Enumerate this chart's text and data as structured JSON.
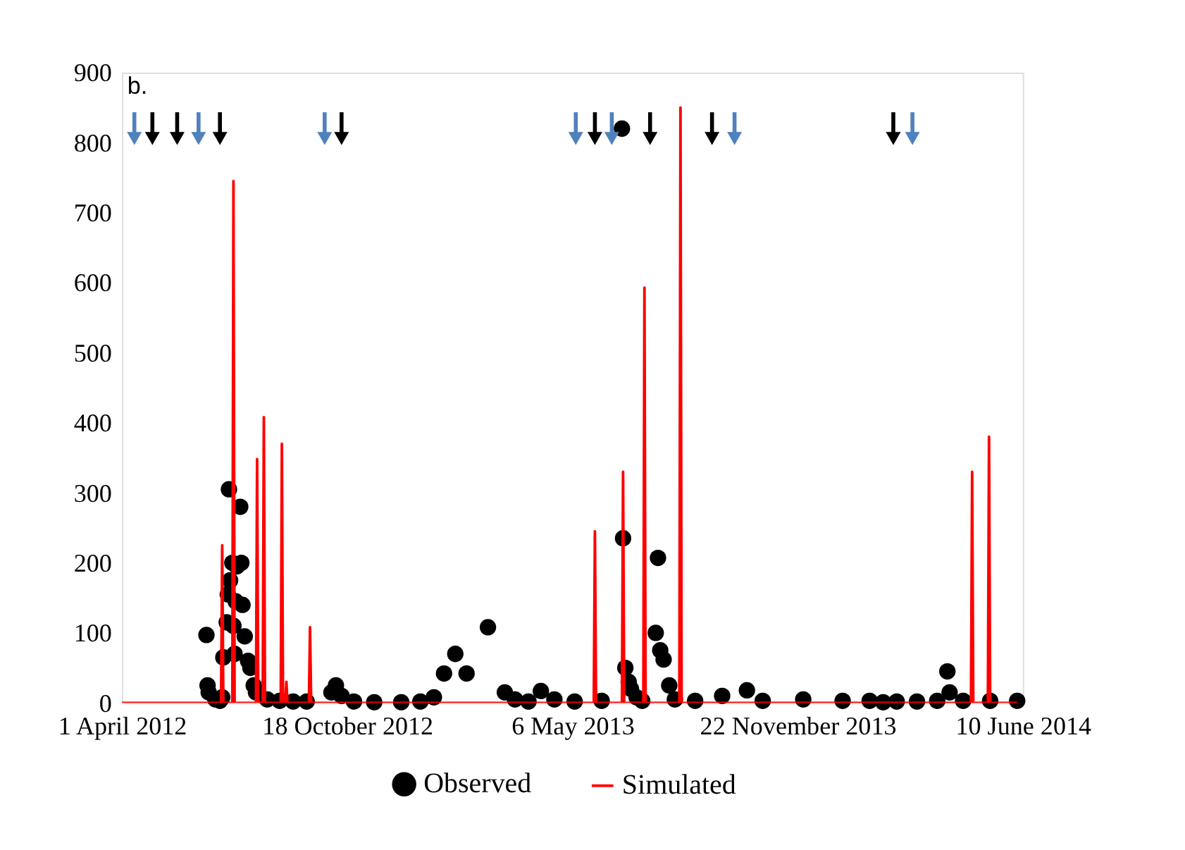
{
  "chart_data": {
    "type": "scatter",
    "annotations": [
      "b."
    ],
    "xlim": [
      "2012-04-01",
      "2014-06-10"
    ],
    "xticks": [
      {
        "value": "2012-04-01",
        "label": "1 April 2012"
      },
      {
        "value": "2012-10-18",
        "label": "18 October 2012"
      },
      {
        "value": "2013-05-06",
        "label": "6 May 2013"
      },
      {
        "value": "2013-11-22",
        "label": "22 November 2013"
      },
      {
        "value": "2014-06-10",
        "label": "10 June 2014"
      }
    ],
    "ylim": [
      0,
      900
    ],
    "yticks": [
      0,
      100,
      200,
      300,
      400,
      500,
      600,
      700,
      800,
      900
    ],
    "grid": false,
    "legend": "bottom",
    "series": [
      {
        "name": "Observed",
        "type": "scatter",
        "marker": "circle",
        "color": "#000000",
        "x": [
          "2012-06-15",
          "2012-06-16",
          "2012-06-17",
          "2012-06-23",
          "2012-06-27",
          "2012-06-29",
          "2012-06-30",
          "2012-07-03",
          "2012-07-04",
          "2012-07-05",
          "2012-07-06",
          "2012-07-08",
          "2012-07-09",
          "2012-07-10",
          "2012-07-11",
          "2012-07-12",
          "2012-07-15",
          "2012-07-16",
          "2012-07-17",
          "2012-07-19",
          "2012-07-22",
          "2012-07-24",
          "2012-07-27",
          "2012-07-29",
          "2012-08-08",
          "2012-08-19",
          "2012-08-31",
          "2012-09-12",
          "2012-10-04",
          "2012-10-08",
          "2012-10-13",
          "2012-10-24",
          "2012-11-11",
          "2012-12-05",
          "2012-12-22",
          "2013-01-03",
          "2013-01-12",
          "2013-01-22",
          "2013-02-01",
          "2013-02-20",
          "2013-03-07",
          "2013-03-16",
          "2013-03-28",
          "2013-04-08",
          "2013-04-20",
          "2013-05-08",
          "2013-06-01",
          "2013-06-19",
          "2013-06-20",
          "2013-06-22",
          "2013-06-25",
          "2013-06-27",
          "2013-07-02",
          "2013-07-07",
          "2013-07-19",
          "2013-07-21",
          "2013-07-23",
          "2013-07-26",
          "2013-07-31",
          "2013-08-05",
          "2013-08-23",
          "2013-09-16",
          "2013-10-08",
          "2013-10-22",
          "2013-11-27",
          "2014-01-01",
          "2014-01-25",
          "2014-02-06",
          "2014-02-18",
          "2014-03-08",
          "2014-03-26",
          "2014-04-04",
          "2014-04-06",
          "2014-04-18",
          "2014-05-12",
          "2014-06-05"
        ],
        "values": [
          97,
          25,
          15,
          5,
          3,
          8,
          65,
          115,
          155,
          305,
          175,
          200,
          110,
          70,
          145,
          195,
          280,
          200,
          140,
          95,
          60,
          50,
          25,
          15,
          5,
          3,
          2,
          2,
          15,
          25,
          10,
          2,
          1,
          1,
          2,
          8,
          42,
          70,
          42,
          108,
          15,
          5,
          2,
          17,
          5,
          2,
          3,
          820,
          235,
          50,
          30,
          20,
          8,
          3,
          100,
          207,
          75,
          62,
          25,
          5,
          3,
          10,
          18,
          3,
          5,
          3,
          3,
          1,
          2,
          2,
          3,
          45,
          15,
          3,
          3,
          3
        ]
      },
      {
        "name": "Simulated",
        "type": "line",
        "line_style": "solid",
        "color": "#ff0000",
        "x": [
          "2012-04-01",
          "2012-06-28",
          "2012-06-29",
          "2012-06-30",
          "2012-07-08",
          "2012-07-09",
          "2012-07-10",
          "2012-07-29",
          "2012-07-30",
          "2012-07-31",
          "2012-08-04",
          "2012-08-05",
          "2012-08-06",
          "2012-08-20",
          "2012-08-21",
          "2012-08-22",
          "2012-08-24",
          "2012-08-25",
          "2012-08-26",
          "2012-09-14",
          "2012-09-15",
          "2012-09-16",
          "2013-05-25",
          "2013-05-26",
          "2013-05-27",
          "2013-06-19",
          "2013-06-20",
          "2013-06-21",
          "2013-07-08",
          "2013-07-09",
          "2013-07-10",
          "2013-08-09",
          "2013-08-10",
          "2013-08-11",
          "2014-04-25",
          "2014-04-26",
          "2014-04-27",
          "2014-05-10",
          "2014-05-11",
          "2014-05-12",
          "2014-06-05"
        ],
        "values": [
          0,
          0,
          225,
          0,
          0,
          745,
          0,
          0,
          348,
          0,
          0,
          408,
          0,
          0,
          370,
          0,
          0,
          30,
          0,
          0,
          108,
          0,
          0,
          245,
          0,
          0,
          330,
          0,
          0,
          593,
          0,
          0,
          850,
          0,
          0,
          330,
          0,
          0,
          380,
          0,
          0
        ]
      },
      {
        "type": "scatter",
        "marker": "triangle",
        "color": "#4f81bd",
        "x": [
          "2012-04-12",
          "2012-06-08",
          "2012-09-28",
          "2013-05-09",
          "2013-06-10",
          "2013-09-27",
          "2014-03-04"
        ],
        "values": [
          820,
          820,
          820,
          820,
          820,
          820,
          820
        ]
      },
      {
        "type": "scatter",
        "marker": "triangle",
        "color": "#000000",
        "x": [
          "2012-04-28",
          "2012-05-20",
          "2012-06-27",
          "2012-10-13",
          "2013-05-26",
          "2013-07-14",
          "2013-09-07",
          "2014-02-15"
        ],
        "values": [
          820,
          820,
          820,
          820,
          820,
          820,
          820,
          820
        ]
      }
    ]
  }
}
